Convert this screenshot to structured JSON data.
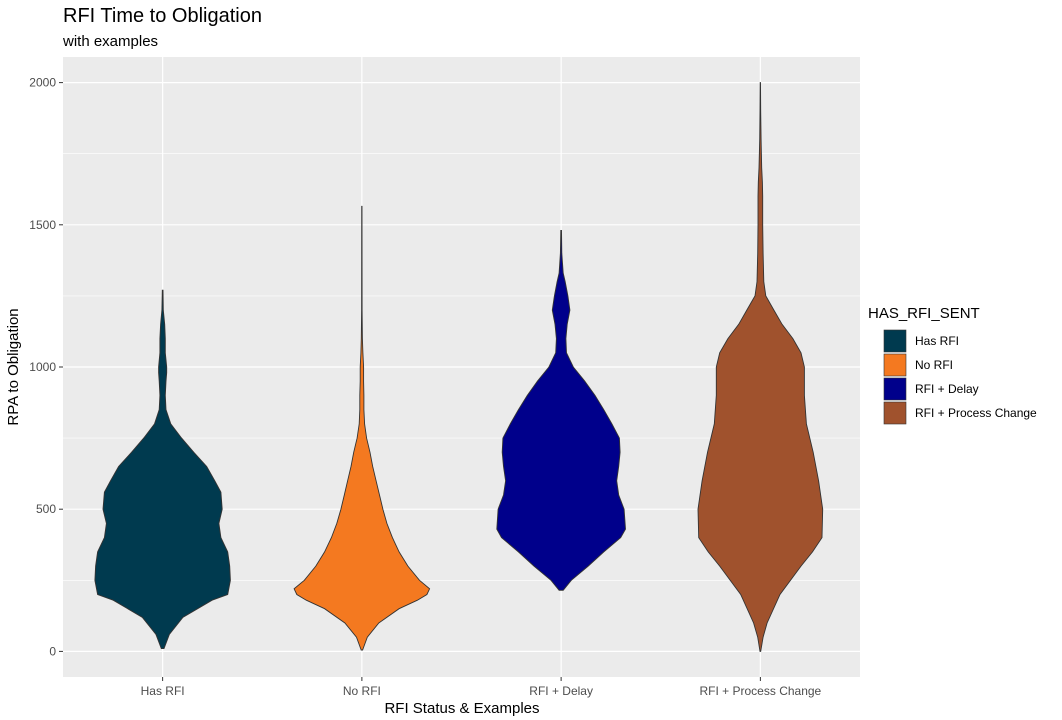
{
  "chart_data": {
    "type": "violin",
    "title": "RFI Time to Obligation",
    "subtitle": "with examples",
    "xlabel": "RFI Status & Examples",
    "ylabel": "RPA to Obligation",
    "ylim": [
      -90,
      2090
    ],
    "y_ticks": [
      0,
      500,
      1000,
      1500,
      2000
    ],
    "categories": [
      "Has RFI",
      "No RFI",
      "RFI + Delay",
      "RFI + Process Change"
    ],
    "grid": true,
    "legend": {
      "title": "HAS_RFI_SENT",
      "position": "right",
      "entries": [
        "Has RFI",
        "No RFI",
        "RFI + Delay",
        "RFI + Process Change"
      ]
    },
    "series": [
      {
        "category": "Has RFI",
        "color": "#003A4F",
        "min": 10,
        "max": 1270,
        "profile": [
          [
            10,
            0.02
          ],
          [
            60,
            0.1
          ],
          [
            120,
            0.3
          ],
          [
            180,
            0.73
          ],
          [
            200,
            0.96
          ],
          [
            250,
            1.0
          ],
          [
            300,
            0.99
          ],
          [
            350,
            0.96
          ],
          [
            400,
            0.86
          ],
          [
            450,
            0.83
          ],
          [
            500,
            0.88
          ],
          [
            560,
            0.86
          ],
          [
            600,
            0.77
          ],
          [
            650,
            0.65
          ],
          [
            700,
            0.46
          ],
          [
            750,
            0.28
          ],
          [
            800,
            0.12
          ],
          [
            850,
            0.05
          ],
          [
            900,
            0.04
          ],
          [
            950,
            0.05
          ],
          [
            980,
            0.06
          ],
          [
            1000,
            0.06
          ],
          [
            1050,
            0.04
          ],
          [
            1100,
            0.04
          ],
          [
            1150,
            0.03
          ],
          [
            1200,
            0.01
          ],
          [
            1270,
            0.005
          ]
        ]
      },
      {
        "category": "No RFI",
        "color": "#F47920",
        "min": 5,
        "max": 1565,
        "profile": [
          [
            5,
            0.01
          ],
          [
            50,
            0.08
          ],
          [
            100,
            0.25
          ],
          [
            150,
            0.55
          ],
          [
            180,
            0.82
          ],
          [
            200,
            0.96
          ],
          [
            220,
            1.0
          ],
          [
            250,
            0.85
          ],
          [
            300,
            0.68
          ],
          [
            350,
            0.55
          ],
          [
            400,
            0.45
          ],
          [
            450,
            0.37
          ],
          [
            500,
            0.31
          ],
          [
            550,
            0.26
          ],
          [
            600,
            0.21
          ],
          [
            650,
            0.16
          ],
          [
            700,
            0.12
          ],
          [
            750,
            0.07
          ],
          [
            800,
            0.04
          ],
          [
            850,
            0.03
          ],
          [
            900,
            0.03
          ],
          [
            950,
            0.025
          ],
          [
            1000,
            0.025
          ],
          [
            1050,
            0.015
          ],
          [
            1100,
            0.008
          ],
          [
            1200,
            0.004
          ],
          [
            1565,
            0.002
          ]
        ]
      },
      {
        "category": "RFI + Delay",
        "color": "#00008B",
        "min": 215,
        "max": 1480,
        "profile": [
          [
            215,
            0.03
          ],
          [
            250,
            0.15
          ],
          [
            300,
            0.4
          ],
          [
            350,
            0.63
          ],
          [
            400,
            0.88
          ],
          [
            430,
            0.95
          ],
          [
            500,
            0.93
          ],
          [
            550,
            0.85
          ],
          [
            600,
            0.82
          ],
          [
            650,
            0.85
          ],
          [
            700,
            0.87
          ],
          [
            750,
            0.86
          ],
          [
            800,
            0.75
          ],
          [
            850,
            0.63
          ],
          [
            900,
            0.5
          ],
          [
            950,
            0.35
          ],
          [
            1000,
            0.18
          ],
          [
            1050,
            0.08
          ],
          [
            1100,
            0.07
          ],
          [
            1150,
            0.09
          ],
          [
            1200,
            0.13
          ],
          [
            1250,
            0.1
          ],
          [
            1300,
            0.06
          ],
          [
            1330,
            0.03
          ],
          [
            1400,
            0.01
          ],
          [
            1480,
            0.005
          ]
        ]
      },
      {
        "category": "RFI + Process Change",
        "color": "#A0522D",
        "min": 0,
        "max": 2000,
        "profile": [
          [
            0,
            0.005
          ],
          [
            50,
            0.04
          ],
          [
            100,
            0.1
          ],
          [
            200,
            0.29
          ],
          [
            300,
            0.6
          ],
          [
            350,
            0.77
          ],
          [
            400,
            0.91
          ],
          [
            500,
            0.92
          ],
          [
            600,
            0.86
          ],
          [
            700,
            0.78
          ],
          [
            800,
            0.68
          ],
          [
            900,
            0.65
          ],
          [
            1000,
            0.65
          ],
          [
            1050,
            0.6
          ],
          [
            1100,
            0.48
          ],
          [
            1150,
            0.32
          ],
          [
            1200,
            0.2
          ],
          [
            1250,
            0.08
          ],
          [
            1300,
            0.05
          ],
          [
            1400,
            0.04
          ],
          [
            1500,
            0.035
          ],
          [
            1600,
            0.035
          ],
          [
            1650,
            0.03
          ],
          [
            1700,
            0.02
          ],
          [
            1800,
            0.01
          ],
          [
            1900,
            0.005
          ],
          [
            2000,
            0.002
          ]
        ]
      }
    ]
  }
}
